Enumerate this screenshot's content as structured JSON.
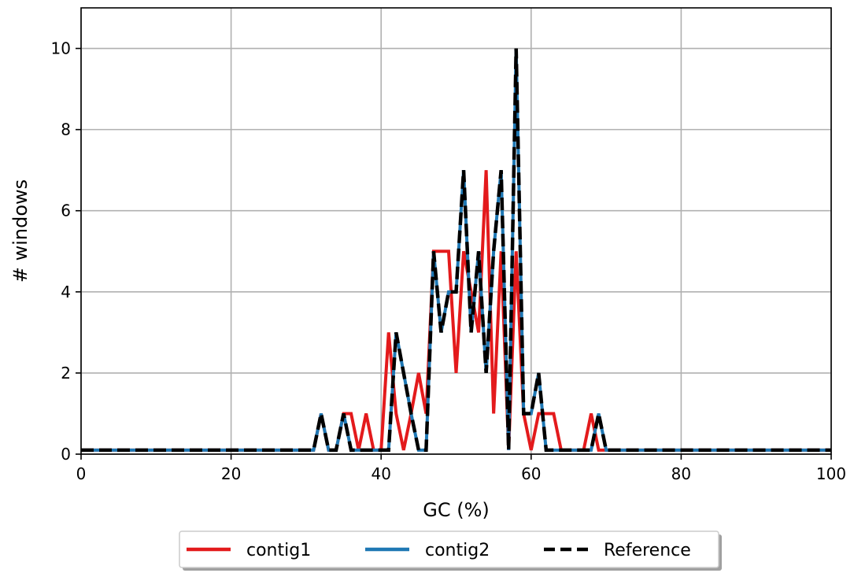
{
  "chart_data": {
    "type": "line",
    "xlabel": "GC (%)",
    "ylabel": "# windows",
    "xlim": [
      0,
      100
    ],
    "ylim": [
      0,
      11
    ],
    "xticks": [
      0,
      20,
      40,
      60,
      80,
      100
    ],
    "yticks": [
      0,
      2,
      4,
      6,
      8,
      10
    ],
    "grid": true,
    "legend_position": "bottom-center",
    "baseline_offset": 0.1,
    "x": [
      0,
      1,
      2,
      3,
      4,
      5,
      6,
      7,
      8,
      9,
      10,
      11,
      12,
      13,
      14,
      15,
      16,
      17,
      18,
      19,
      20,
      21,
      22,
      23,
      24,
      25,
      26,
      27,
      28,
      29,
      30,
      31,
      32,
      33,
      34,
      35,
      36,
      37,
      38,
      39,
      40,
      41,
      42,
      43,
      44,
      45,
      46,
      47,
      48,
      49,
      50,
      51,
      52,
      53,
      54,
      55,
      56,
      57,
      58,
      59,
      60,
      61,
      62,
      63,
      64,
      65,
      66,
      67,
      68,
      69,
      70,
      71,
      72,
      73,
      74,
      75,
      76,
      77,
      78,
      79,
      80,
      81,
      82,
      83,
      84,
      85,
      86,
      87,
      88,
      89,
      90,
      91,
      92,
      93,
      94,
      95,
      96,
      97,
      98,
      99,
      100
    ],
    "series": [
      {
        "name": "contig1",
        "color": "#e31a1c",
        "dash": "solid",
        "values": [
          0,
          0,
          0,
          0,
          0,
          0,
          0,
          0,
          0,
          0,
          0,
          0,
          0,
          0,
          0,
          0,
          0,
          0,
          0,
          0,
          0,
          0,
          0,
          0,
          0,
          0,
          0,
          0,
          0,
          0,
          0,
          0,
          1,
          0,
          0,
          1,
          1,
          0,
          1,
          0,
          0,
          3,
          1,
          0,
          1,
          2,
          1,
          5,
          5,
          5,
          2,
          5,
          4,
          3,
          7,
          1,
          5,
          0,
          5,
          1,
          0,
          1,
          1,
          1,
          0,
          0,
          0,
          0,
          1,
          0,
          0,
          0,
          0,
          0,
          0,
          0,
          0,
          0,
          0,
          0,
          0,
          0,
          0,
          0,
          0,
          0,
          0,
          0,
          0,
          0,
          0,
          0,
          0,
          0,
          0,
          0,
          0,
          0,
          0,
          0,
          0
        ]
      },
      {
        "name": "contig2",
        "color": "#1f78b4",
        "dash": "solid",
        "values": [
          0,
          0,
          0,
          0,
          0,
          0,
          0,
          0,
          0,
          0,
          0,
          0,
          0,
          0,
          0,
          0,
          0,
          0,
          0,
          0,
          0,
          0,
          0,
          0,
          0,
          0,
          0,
          0,
          0,
          0,
          0,
          0,
          1,
          0,
          0,
          1,
          0,
          0,
          0,
          0,
          0,
          0,
          3,
          2,
          1,
          0,
          0,
          5,
          3,
          4,
          4,
          7,
          3,
          5,
          2,
          5,
          7,
          0,
          10,
          1,
          1,
          2,
          0,
          0,
          0,
          0,
          0,
          0,
          0,
          1,
          0,
          0,
          0,
          0,
          0,
          0,
          0,
          0,
          0,
          0,
          0,
          0,
          0,
          0,
          0,
          0,
          0,
          0,
          0,
          0,
          0,
          0,
          0,
          0,
          0,
          0,
          0,
          0,
          0,
          0,
          0
        ]
      },
      {
        "name": "Reference",
        "color": "#000000",
        "dash": "dashed",
        "values": [
          0,
          0,
          0,
          0,
          0,
          0,
          0,
          0,
          0,
          0,
          0,
          0,
          0,
          0,
          0,
          0,
          0,
          0,
          0,
          0,
          0,
          0,
          0,
          0,
          0,
          0,
          0,
          0,
          0,
          0,
          0,
          0,
          1,
          0,
          0,
          1,
          0,
          0,
          0,
          0,
          0,
          0,
          3,
          2,
          1,
          0,
          0,
          5,
          3,
          4,
          4,
          7,
          3,
          5,
          2,
          5,
          7,
          0,
          10,
          1,
          1,
          2,
          0,
          0,
          0,
          0,
          0,
          0,
          0,
          1,
          0,
          0,
          0,
          0,
          0,
          0,
          0,
          0,
          0,
          0,
          0,
          0,
          0,
          0,
          0,
          0,
          0,
          0,
          0,
          0,
          0,
          0,
          0,
          0,
          0,
          0,
          0,
          0,
          0,
          0,
          0
        ]
      }
    ]
  }
}
